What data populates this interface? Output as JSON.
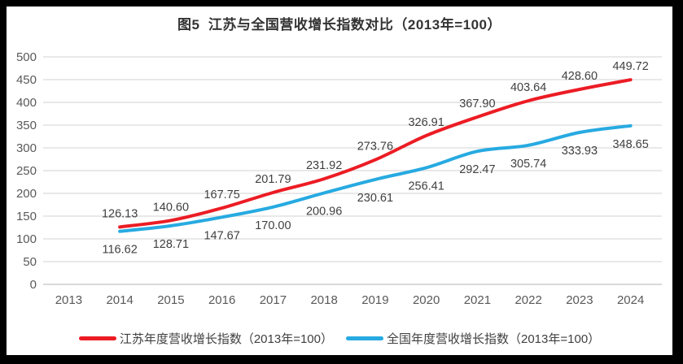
{
  "frame": {
    "border_color": "#000000",
    "card_background": "#ffffff"
  },
  "title": "图5  江苏与全国营收增长指数对比（2013年=100）",
  "chart_data": {
    "type": "line",
    "title": "图5  江苏与全国营收增长指数对比（2013年=100）",
    "categories": [
      "2013",
      "2014",
      "2015",
      "2016",
      "2017",
      "2018",
      "2019",
      "2020",
      "2021",
      "2022",
      "2023",
      "2024"
    ],
    "series": [
      {
        "name": "江苏年度营收增长指数（2013年=100）",
        "color": "#EC1C24",
        "label_position": "above",
        "values": [
          null,
          126.13,
          140.6,
          167.75,
          201.79,
          231.92,
          273.76,
          326.91,
          367.9,
          403.64,
          428.6,
          449.72
        ]
      },
      {
        "name": "全国年度营收增长指数（2013年=100）",
        "color": "#27AAE1",
        "label_position": "below",
        "values": [
          null,
          116.62,
          128.71,
          147.67,
          170.0,
          200.96,
          230.61,
          256.41,
          292.47,
          305.74,
          333.93,
          348.65
        ]
      }
    ],
    "xlabel": "",
    "ylabel": "",
    "ylim": [
      0,
      500
    ],
    "ytick_step": 50,
    "grid": true,
    "legend_position": "bottom",
    "grid_color": "#D9D9D9",
    "axis_line_color": "#D9D9D9",
    "tick_label_color": "#595959",
    "data_label_color": "#404040",
    "data_label_format_decimals": 2
  }
}
